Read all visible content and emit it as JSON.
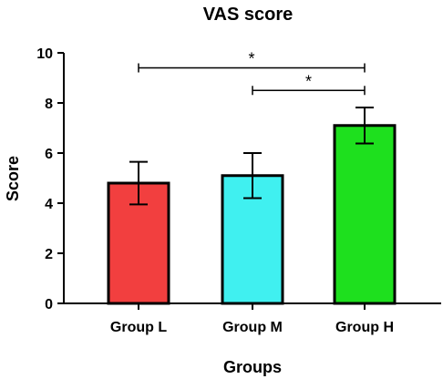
{
  "chart_data": {
    "type": "bar",
    "title": "VAS score",
    "xlabel": "Groups",
    "ylabel": "Score",
    "ylim": [
      0,
      10
    ],
    "yticks": [
      0,
      2,
      4,
      6,
      8,
      10
    ],
    "categories": [
      "Group L",
      "Group M",
      "Group H"
    ],
    "values": [
      4.8,
      5.1,
      7.1
    ],
    "errors": [
      0.85,
      0.9,
      0.72
    ],
    "colors": [
      "#f23f3f",
      "#40f0f0",
      "#1ee01e"
    ],
    "grid": false,
    "significance": [
      {
        "from": 0,
        "to": 2,
        "y": 9.4,
        "label": "*"
      },
      {
        "from": 1,
        "to": 2,
        "y": 8.5,
        "label": "*"
      }
    ]
  }
}
